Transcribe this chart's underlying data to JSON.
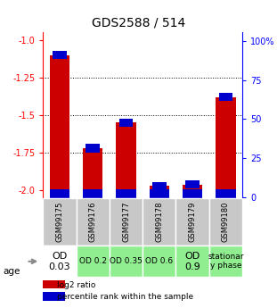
{
  "title": "GDS2588 / 514",
  "samples": [
    "GSM99175",
    "GSM99176",
    "GSM99177",
    "GSM99178",
    "GSM99179",
    "GSM99180"
  ],
  "log2_ratio": [
    -1.1,
    -1.72,
    -1.55,
    -1.97,
    -1.96,
    -1.38
  ],
  "percentile_rank_vals": [
    3,
    3,
    3,
    3,
    2,
    3
  ],
  "ylim_left": [
    -2.05,
    -0.95
  ],
  "ylim_right": [
    -0.525,
    105.525
  ],
  "yticks_left": [
    -2.0,
    -1.75,
    -1.5,
    -1.25,
    -1.0
  ],
  "yticks_right": [
    0,
    25,
    50,
    75,
    100
  ],
  "ytick_labels_right": [
    "0",
    "25",
    "50",
    "75",
    "100%"
  ],
  "hlines": [
    -1.25,
    -1.5,
    -1.75
  ],
  "bar_color_red": "#cc0000",
  "bar_color_blue": "#0000cc",
  "bar_width": 0.6,
  "age_labels": [
    "OD\n0.03",
    "OD 0.2",
    "OD 0.35",
    "OD 0.6",
    "OD\n0.9",
    "stationar\ny phase"
  ],
  "age_bg_colors": [
    "#ffffff",
    "#90ee90",
    "#90ee90",
    "#90ee90",
    "#90ee90",
    "#90ee90"
  ],
  "legend_red_label": "log2 ratio",
  "legend_blue_label": "percentile rank within the sample",
  "age_label": "age",
  "title_fontsize": 10,
  "tick_fontsize": 7,
  "sample_fontsize": 6,
  "age_fontsize_small": 6.5,
  "age_fontsize_large": 8
}
